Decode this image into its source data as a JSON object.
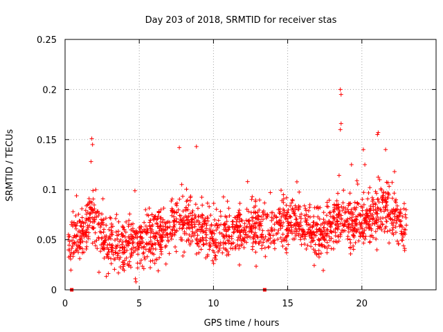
{
  "chart_data": {
    "type": "scatter",
    "title": "Day 203 of 2018, SRMTID for receiver stas",
    "xlabel": "GPS time / hours",
    "ylabel": "SRMTID / TECUs",
    "xlim": [
      0,
      25
    ],
    "ylim": [
      0,
      0.25
    ],
    "xticks": [
      0,
      5,
      10,
      15,
      20
    ],
    "yticks": [
      0,
      0.05,
      0.1,
      0.15,
      0.2,
      0.25
    ],
    "xtick_labels": [
      "0",
      "5",
      "10",
      "15",
      "20"
    ],
    "ytick_labels": [
      "0",
      "0.05",
      "0.1",
      "0.15",
      "0.2",
      "0.25"
    ],
    "grid": true,
    "marker": "+",
    "color": "#ff0000",
    "zero_markers": {
      "x": [
        0.45,
        13.45
      ],
      "y": [
        0,
        0
      ]
    },
    "series_description": "Dense cloud of '+' markers (~1800 points, one per 15s epoch approx.) spanning 0.2-23.0 h; values mostly 0.03-0.09 TECU, with a raised cluster near 18.3-22.5 h reaching ~0.2 at 18.6 h.",
    "trend": {
      "x": [
        0.2,
        1.0,
        1.8,
        2.5,
        3.5,
        5.0,
        6.5,
        7.5,
        9.0,
        10.0,
        11.0,
        12.5,
        13.5,
        15.0,
        16.5,
        17.5,
        18.5,
        19.5,
        20.5,
        21.5,
        22.5,
        23.0
      ],
      "y": [
        0.045,
        0.055,
        0.075,
        0.052,
        0.043,
        0.05,
        0.055,
        0.065,
        0.062,
        0.052,
        0.058,
        0.06,
        0.062,
        0.068,
        0.06,
        0.055,
        0.075,
        0.065,
        0.068,
        0.08,
        0.07,
        0.055
      ]
    },
    "peaks": {
      "x": [
        1.8,
        1.85,
        1.75,
        7.7,
        8.85,
        12.3,
        18.55,
        18.6,
        18.6,
        18.55,
        19.3,
        20.1,
        20.2,
        21.05,
        21.1,
        21.6,
        22.2
      ],
      "y": [
        0.151,
        0.145,
        0.128,
        0.142,
        0.143,
        0.108,
        0.2,
        0.195,
        0.166,
        0.16,
        0.125,
        0.14,
        0.125,
        0.155,
        0.157,
        0.14,
        0.118
      ]
    },
    "seed": 203
  }
}
